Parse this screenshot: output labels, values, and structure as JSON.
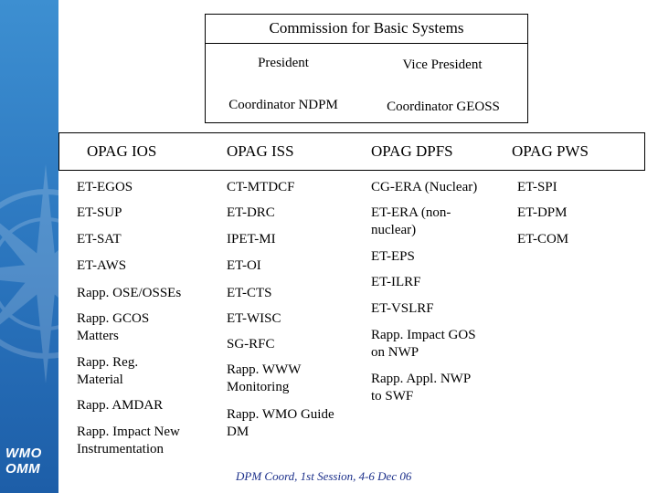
{
  "header": {
    "title": "Commission for Basic Systems",
    "president": "President",
    "vice_president": "Vice President",
    "coordinator_ndpm": "Coordinator NDPM",
    "coordinator_geoss": "Coordinator GEOSS"
  },
  "logo": {
    "line1": "WMO",
    "line2": "OMM"
  },
  "columns": [
    {
      "title": "OPAG IOS",
      "items": [
        "ET-EGOS",
        "ET-SUP",
        "ET-SAT",
        "ET-AWS",
        "Rapp. OSE/OSSEs",
        "Rapp. GCOS\nMatters",
        "Rapp. Reg.\nMaterial",
        "Rapp. AMDAR",
        "Rapp. Impact New\nInstrumentation"
      ]
    },
    {
      "title": "OPAG ISS",
      "items": [
        "CT-MTDCF",
        "ET-DRC",
        "IPET-MI",
        "ET-OI",
        "ET-CTS",
        "ET-WISC",
        "SG-RFC",
        "Rapp. WWW\nMonitoring",
        "Rapp. WMO Guide\nDM"
      ]
    },
    {
      "title": "OPAG DPFS",
      "items": [
        "CG-ERA (Nuclear)",
        "ET-ERA (non-\nnuclear)",
        "ET-EPS",
        "ET-ILRF",
        "ET-VSLRF",
        "Rapp. Impact GOS\non NWP",
        "Rapp. Appl. NWP\nto SWF"
      ]
    },
    {
      "title": "OPAG PWS",
      "items": [
        "ET-SPI",
        "ET-DPM",
        "ET-COM"
      ]
    }
  ],
  "footer": "DPM Coord, 1st Session, 4-6 Dec 06",
  "colors": {
    "sidebar": "#2a74bd",
    "footer_text": "#1b2f8a"
  }
}
